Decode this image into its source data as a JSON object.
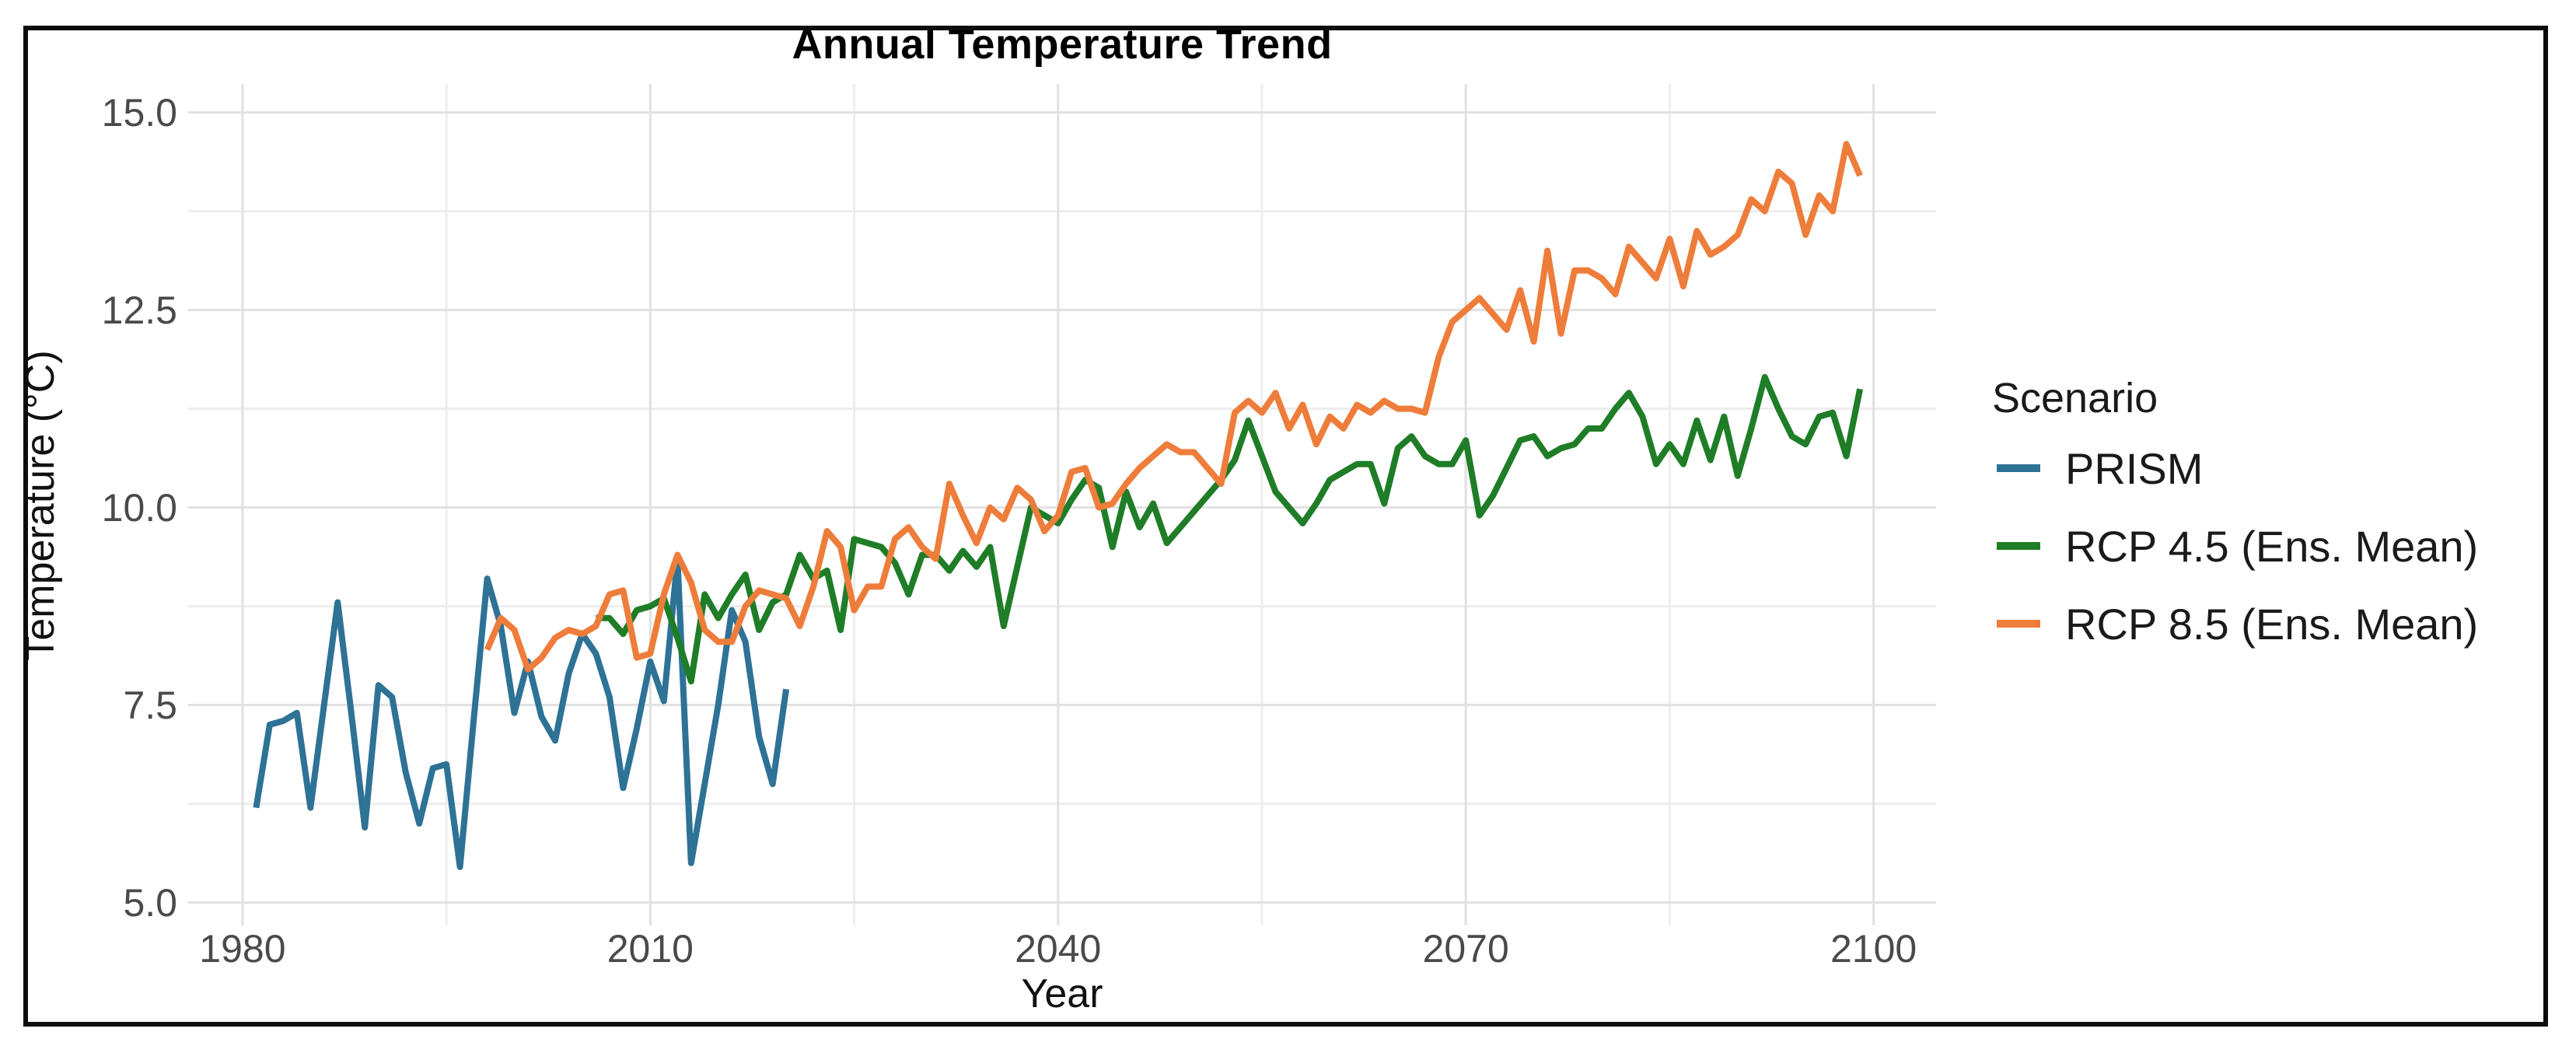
{
  "frame": {
    "border_color": "#0d0d0d",
    "background": "#ffffff"
  },
  "styles": {
    "grid_major_color": "#e2e2e2",
    "grid_minor_color": "#ededed",
    "tick_label_color": "#4a4a4a",
    "axis_title_color": "#111111",
    "title_color": "#000000",
    "line_width": 8
  },
  "chart_data": {
    "type": "line",
    "title": "Annual Temperature Trend",
    "xlabel": "Year",
    "ylabel": "Temperature (°C)",
    "grid": true,
    "legend_title": "Scenario",
    "legend_position": "right",
    "x_ticks": [
      1980,
      2010,
      2040,
      2070,
      2100
    ],
    "x_minor_ticks": [
      1995,
      2025,
      2055,
      2085
    ],
    "y_ticks": [
      5.0,
      7.5,
      10.0,
      12.5,
      15.0
    ],
    "y_tick_labels": [
      "5.0",
      "7.5",
      "10.0",
      "12.5",
      "15.0"
    ],
    "y_minor_ticks": [
      6.25,
      8.75,
      11.25,
      13.75
    ],
    "xlim": [
      1976.0,
      2104.6
    ],
    "ylim": [
      4.71,
      15.36
    ],
    "series": [
      {
        "name": "PRISM",
        "color": "#2e7296",
        "start_year": 1981,
        "values": [
          6.2,
          7.25,
          7.3,
          7.4,
          6.2,
          7.5,
          8.8,
          7.4,
          5.95,
          7.75,
          7.6,
          6.65,
          6.0,
          6.7,
          6.75,
          5.45,
          7.3,
          9.1,
          8.5,
          7.4,
          8.05,
          7.35,
          7.05,
          7.9,
          8.4,
          8.15,
          7.6,
          6.45,
          7.2,
          8.05,
          7.55,
          9.35,
          5.5,
          6.5,
          7.5,
          8.7,
          8.3,
          7.1,
          6.5,
          7.7
        ]
      },
      {
        "name": "RCP 4.5 (Ens. Mean)",
        "color": "#1f7d27",
        "start_year": 2006,
        "values": [
          8.6,
          8.6,
          8.4,
          8.7,
          8.75,
          8.85,
          8.35,
          7.8,
          8.9,
          8.6,
          8.9,
          9.15,
          8.45,
          8.8,
          8.9,
          9.4,
          9.1,
          9.2,
          8.45,
          9.6,
          9.55,
          9.5,
          9.3,
          8.9,
          9.4,
          9.4,
          9.2,
          9.45,
          9.25,
          9.5,
          8.5,
          9.25,
          10.0,
          9.9,
          9.8,
          10.1,
          10.35,
          10.25,
          9.5,
          10.2,
          9.75,
          10.05,
          9.55,
          9.75,
          9.95,
          10.15,
          10.35,
          10.6,
          11.1,
          10.65,
          10.2,
          10.0,
          9.8,
          10.05,
          10.35,
          10.45,
          10.55,
          10.55,
          10.05,
          10.75,
          10.9,
          10.65,
          10.55,
          10.55,
          10.85,
          9.9,
          10.15,
          10.5,
          10.85,
          10.9,
          10.65,
          10.75,
          10.8,
          11.0,
          11.0,
          11.25,
          11.45,
          11.15,
          10.55,
          10.8,
          10.55,
          11.1,
          10.6,
          11.15,
          10.4,
          11.0,
          11.65,
          11.25,
          10.9,
          10.8,
          11.15,
          11.2,
          10.65,
          11.5
        ]
      },
      {
        "name": "RCP 8.5 (Ens. Mean)",
        "color": "#ee7d3b",
        "start_year": 1998,
        "values": [
          8.2,
          8.6,
          8.45,
          7.95,
          8.1,
          8.35,
          8.45,
          8.4,
          8.5,
          8.9,
          8.95,
          8.1,
          8.15,
          8.9,
          9.4,
          9.05,
          8.45,
          8.3,
          8.3,
          8.75,
          8.95,
          8.9,
          8.85,
          8.5,
          9.0,
          9.7,
          9.5,
          8.7,
          9.0,
          9.0,
          9.6,
          9.75,
          9.5,
          9.35,
          10.3,
          9.9,
          9.55,
          10.0,
          9.85,
          10.25,
          10.1,
          9.7,
          9.9,
          10.45,
          10.5,
          10.0,
          10.05,
          10.3,
          10.5,
          10.65,
          10.8,
          10.7,
          10.7,
          10.5,
          10.3,
          11.2,
          11.35,
          11.2,
          11.45,
          11.0,
          11.3,
          10.8,
          11.15,
          11.0,
          11.3,
          11.2,
          11.35,
          11.25,
          11.25,
          11.2,
          11.9,
          12.35,
          12.5,
          12.65,
          12.45,
          12.25,
          12.75,
          12.1,
          13.25,
          12.2,
          13.0,
          13.0,
          12.9,
          12.7,
          13.3,
          13.1,
          12.9,
          13.4,
          12.8,
          13.5,
          13.2,
          13.3,
          13.45,
          13.9,
          13.75,
          14.25,
          14.1,
          13.45,
          13.95,
          13.75,
          14.6,
          14.2
        ]
      }
    ]
  }
}
